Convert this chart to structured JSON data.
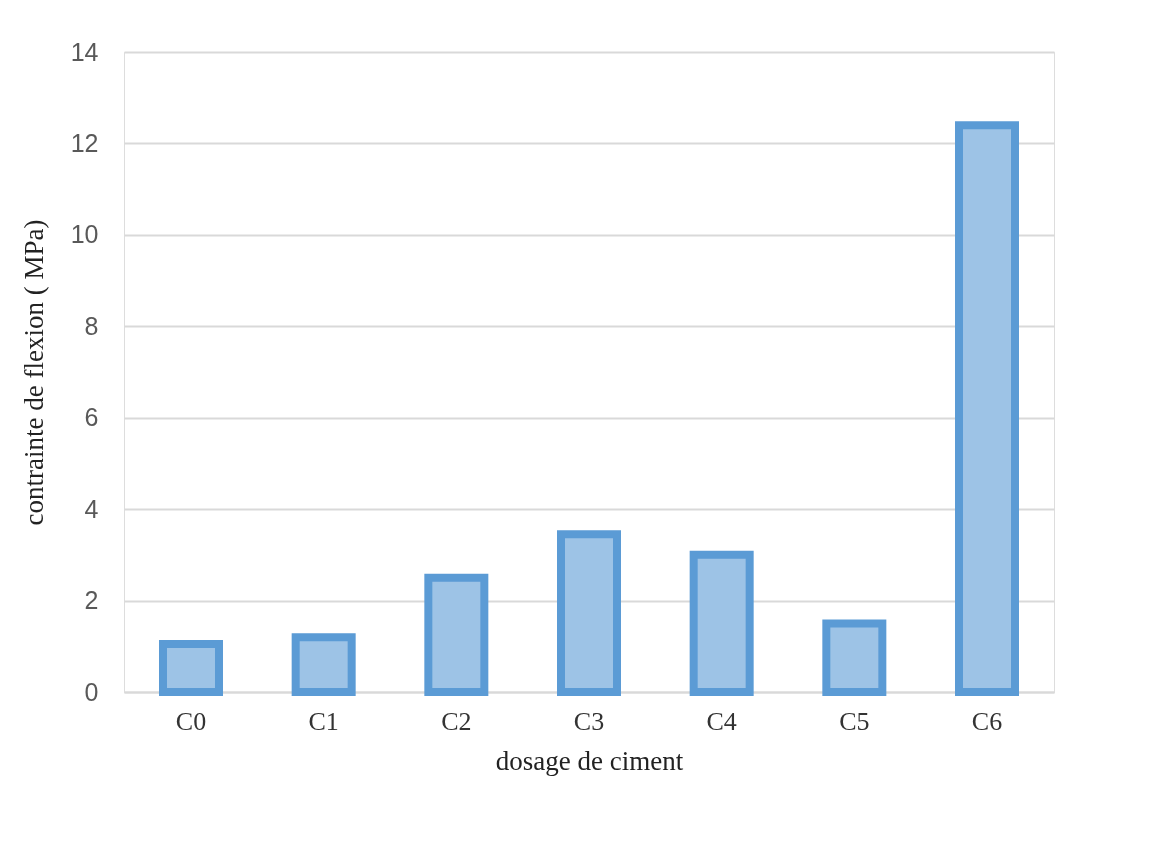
{
  "chart_data": {
    "type": "bar",
    "xlabel": "dosage de ciment",
    "ylabel": "contrainte de flexion ( MPa)",
    "categories": [
      "C0",
      "C1",
      "C2",
      "C3",
      "C4",
      "C5",
      "C6"
    ],
    "values": [
      1.05,
      1.2,
      2.5,
      3.45,
      3.0,
      1.5,
      12.4
    ],
    "color": "#9dc3e6",
    "ylim": [
      0,
      14
    ],
    "yticks": [
      0,
      2,
      4,
      6,
      8,
      10,
      12,
      14
    ],
    "grid": "y"
  }
}
